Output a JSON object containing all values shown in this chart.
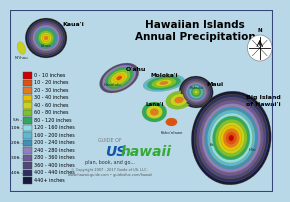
{
  "title_line1": "Hawaiian Islands",
  "title_line2": "Annual Precipitation",
  "bg_color": "#b8d8e8",
  "legend_labels": [
    "0 - 10 inches",
    "10 - 20 inches",
    "20 - 30 inches",
    "30 - 40 inches",
    "40 - 60 inches",
    "60 - 80 inches",
    "80 - 120 inches",
    "120 - 160 inches",
    "160 - 200 inches",
    "200 - 240 inches",
    "240 - 280 inches",
    "280 - 360 inches",
    "360 - 400 inches",
    "400 - 440 inches",
    "440+ inches"
  ],
  "legend_colors": [
    "#cc0000",
    "#e05010",
    "#e87820",
    "#e8c000",
    "#c8d020",
    "#80c030",
    "#30a860",
    "#90dce0",
    "#60b8d0",
    "#4090b8",
    "#9080c0",
    "#705898",
    "#504878",
    "#303060",
    "#181840"
  ],
  "depth_labels": [
    "5ft -",
    "10ft -",
    "20ft -",
    "30ft -",
    "40ft -"
  ],
  "depth_positions": [
    6,
    7,
    9,
    11,
    13
  ],
  "title_fontsize": 7.5
}
